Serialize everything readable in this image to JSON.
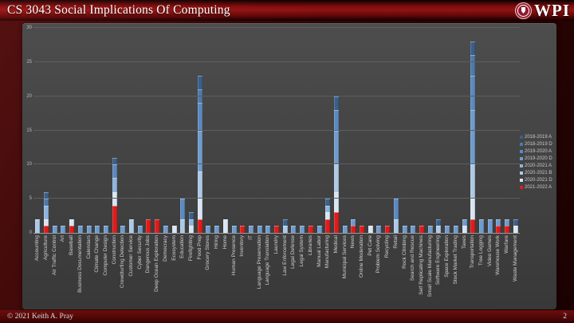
{
  "title_bar": {
    "title": "CS 3043 Social Implications Of Computing",
    "logo_text": "WPI"
  },
  "footer": {
    "copyright": "© 2021 Keith A. Pray",
    "page_number": "2"
  },
  "chart_data": {
    "type": "bar",
    "stacked": true,
    "title": "",
    "xlabel": "",
    "ylabel": "",
    "ylim": [
      0,
      30
    ],
    "yticks": [
      0,
      5,
      10,
      15,
      20,
      25,
      30
    ],
    "grid": true,
    "legend_position": "right",
    "series_names": [
      "2018-2019 A",
      "2018-2019 D",
      "2019-2020 A",
      "2019-2020 D",
      "2020-2021 A",
      "2020-2021 B",
      "2020-2021 D",
      "2021-2022 A"
    ],
    "series_colors": [
      "#3a5f8a",
      "#4d79ab",
      "#5b8ac0",
      "#6f9cce",
      "#8fb4dc",
      "#aec9e6",
      "#d9e5f2",
      "#e01b1b"
    ],
    "stack_order": "bottom_to_top (segments listed as [series_index, value])",
    "categories": [
      "Accounting",
      "Agriculture",
      "Air Traffic Control",
      "Art",
      "Baseball",
      "Business Documentation",
      "Calendars",
      "Climate Change",
      "Computer Design",
      "Construction",
      "Crowdturfing Detection",
      "Customer Service",
      "Cyber Security",
      "Dangerous Jobs",
      "Deep Ocean Exploration",
      "Democracy",
      "Ecosystem",
      "Education",
      "Firefighting",
      "Food Prep",
      "Grocery Stores",
      "Hiring",
      "Home",
      "Human Presence",
      "Inventory",
      "IT",
      "Language Preservation",
      "Language Translation",
      "Laundry",
      "Law Enforcement",
      "Legal Defense",
      "Legal System",
      "Libraries",
      "Manual Labor",
      "Manufacturing",
      "Medical",
      "Municipal Services",
      "News",
      "Online Moderation",
      "Pet Care",
      "Problem Solving",
      "Recycling",
      "Retail",
      "Rock Climbing",
      "Search and Rescue",
      "Self Replicating Machines",
      "Small Scale Manufacturing",
      "Software Engineering",
      "Space Exploration",
      "Stock Market Trading",
      "Taxes",
      "Transportation",
      "Tree Logging",
      "Video Games",
      "Warehouse Work",
      "Warfare",
      "Waste Management"
    ],
    "stacks": [
      [
        [
          5,
          2
        ]
      ],
      [
        [
          7,
          1
        ],
        [
          6,
          1
        ],
        [
          4,
          2
        ],
        [
          1,
          1
        ],
        [
          0,
          1
        ]
      ],
      [
        [
          3,
          1
        ]
      ],
      [
        [
          3,
          1
        ]
      ],
      [
        [
          7,
          1
        ],
        [
          6,
          1
        ]
      ],
      [
        [
          3,
          1
        ]
      ],
      [
        [
          3,
          1
        ]
      ],
      [
        [
          3,
          1
        ]
      ],
      [
        [
          3,
          1
        ]
      ],
      [
        [
          7,
          4
        ],
        [
          6,
          2
        ],
        [
          4,
          2
        ],
        [
          2,
          2
        ],
        [
          0,
          1
        ]
      ],
      [
        [
          3,
          1
        ]
      ],
      [
        [
          5,
          2
        ]
      ],
      [
        [
          3,
          1
        ]
      ],
      [
        [
          7,
          2
        ]
      ],
      [
        [
          7,
          2
        ]
      ],
      [
        [
          3,
          1
        ]
      ],
      [
        [
          6,
          1
        ]
      ],
      [
        [
          5,
          2
        ],
        [
          2,
          3
        ]
      ],
      [
        [
          6,
          1
        ],
        [
          4,
          1
        ],
        [
          0,
          1
        ]
      ],
      [
        [
          7,
          2
        ],
        [
          6,
          3
        ],
        [
          5,
          4
        ],
        [
          3,
          6
        ],
        [
          2,
          4
        ],
        [
          1,
          2
        ],
        [
          0,
          2
        ]
      ],
      [
        [
          3,
          1
        ]
      ],
      [
        [
          3,
          1
        ]
      ],
      [
        [
          6,
          2
        ]
      ],
      [
        [
          3,
          1
        ]
      ],
      [
        [
          7,
          1
        ]
      ],
      [
        [
          3,
          1
        ]
      ],
      [
        [
          3,
          1
        ]
      ],
      [
        [
          3,
          1
        ]
      ],
      [
        [
          7,
          1
        ]
      ],
      [
        [
          5,
          1
        ],
        [
          0,
          1
        ]
      ],
      [
        [
          3,
          1
        ]
      ],
      [
        [
          3,
          1
        ]
      ],
      [
        [
          7,
          1
        ]
      ],
      [
        [
          3,
          1
        ]
      ],
      [
        [
          7,
          2
        ],
        [
          6,
          1
        ],
        [
          4,
          1
        ],
        [
          0,
          1
        ]
      ],
      [
        [
          7,
          3
        ],
        [
          6,
          3
        ],
        [
          5,
          4
        ],
        [
          3,
          5
        ],
        [
          2,
          3
        ],
        [
          0,
          2
        ]
      ],
      [
        [
          3,
          1
        ]
      ],
      [
        [
          7,
          1
        ],
        [
          3,
          1
        ]
      ],
      [
        [
          7,
          1
        ]
      ],
      [
        [
          6,
          1
        ]
      ],
      [
        [
          3,
          1
        ]
      ],
      [
        [
          7,
          1
        ]
      ],
      [
        [
          5,
          2
        ],
        [
          2,
          3
        ]
      ],
      [
        [
          3,
          1
        ]
      ],
      [
        [
          3,
          1
        ]
      ],
      [
        [
          7,
          1
        ]
      ],
      [
        [
          3,
          1
        ]
      ],
      [
        [
          5,
          1
        ],
        [
          0,
          1
        ]
      ],
      [
        [
          3,
          1
        ]
      ],
      [
        [
          3,
          1
        ]
      ],
      [
        [
          6,
          1
        ],
        [
          3,
          1
        ]
      ],
      [
        [
          7,
          2
        ],
        [
          6,
          3
        ],
        [
          5,
          5
        ],
        [
          3,
          8
        ],
        [
          2,
          5
        ],
        [
          1,
          3
        ],
        [
          0,
          2
        ]
      ],
      [
        [
          3,
          2
        ]
      ],
      [
        [
          3,
          2
        ]
      ],
      [
        [
          7,
          1
        ],
        [
          3,
          1
        ]
      ],
      [
        [
          7,
          1
        ],
        [
          3,
          1
        ]
      ],
      [
        [
          6,
          1
        ],
        [
          0,
          1
        ]
      ]
    ]
  }
}
